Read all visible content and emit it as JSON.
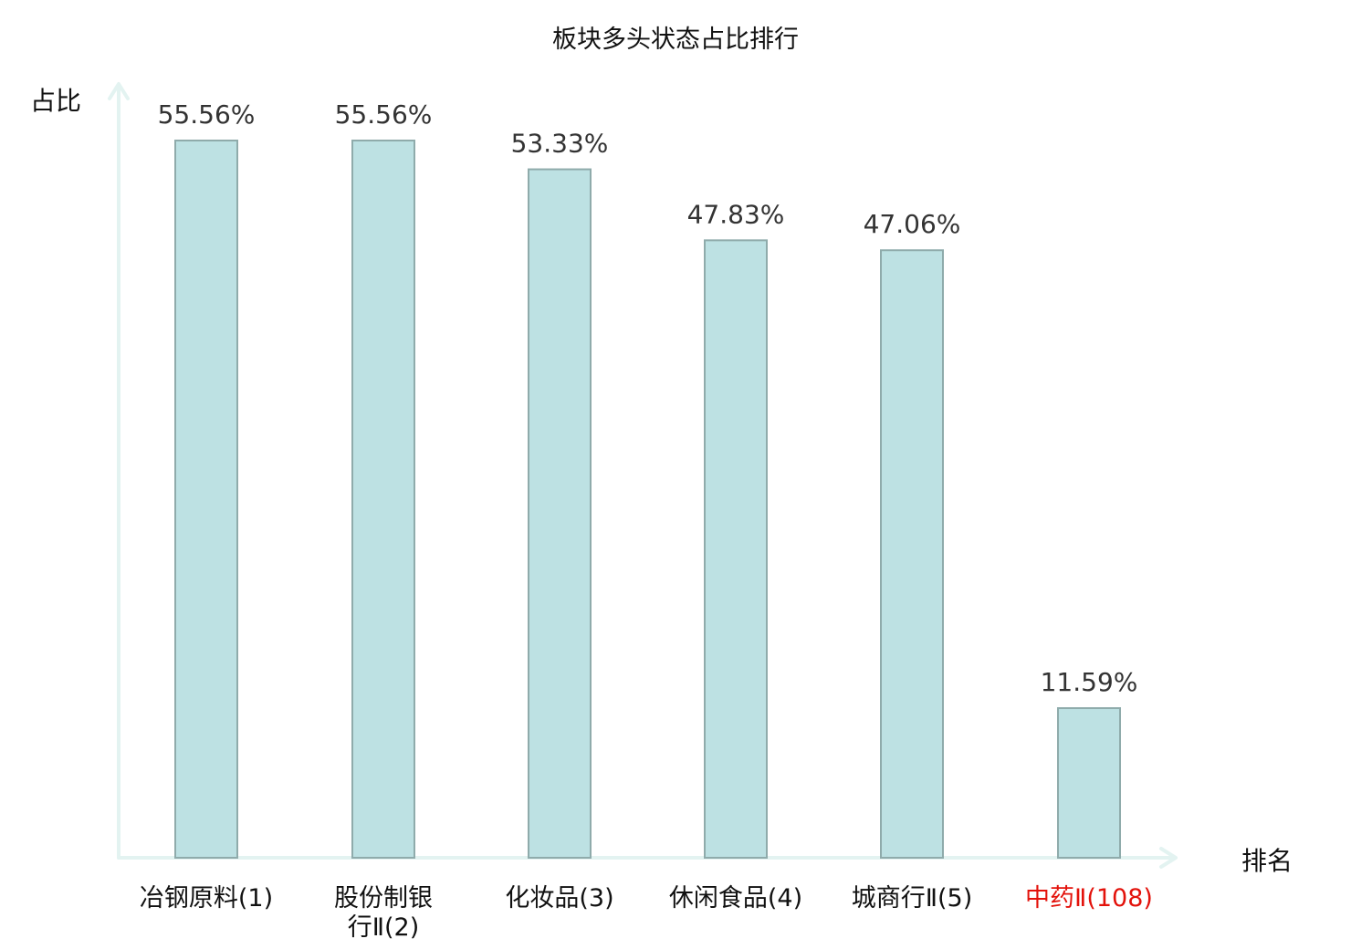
{
  "chart_data": {
    "type": "bar",
    "title": "板块多头状态占比排行",
    "ylabel": "占比",
    "xlabel": "排名",
    "categories": [
      [
        "冶钢原料(1)"
      ],
      [
        "股份制银",
        "行Ⅱ(2)"
      ],
      [
        "化妆品(3)"
      ],
      [
        "休闲食品(4)"
      ],
      [
        "城商行Ⅱ(5)"
      ],
      [
        "中药Ⅱ(108)"
      ]
    ],
    "values": [
      55.56,
      55.56,
      53.33,
      47.83,
      47.06,
      11.59
    ],
    "value_labels": [
      "55.56%",
      "55.56%",
      "53.33%",
      "47.83%",
      "47.06%",
      "11.59%"
    ],
    "highlight_index": 5,
    "ylim": [
      0,
      60
    ],
    "grid": false,
    "colors": {
      "bar_fill": "#bde1e3",
      "bar_stroke": "#8fabab",
      "axis": "#e3f3f1",
      "text": "#111111",
      "highlight_text": "#e3120b"
    }
  }
}
